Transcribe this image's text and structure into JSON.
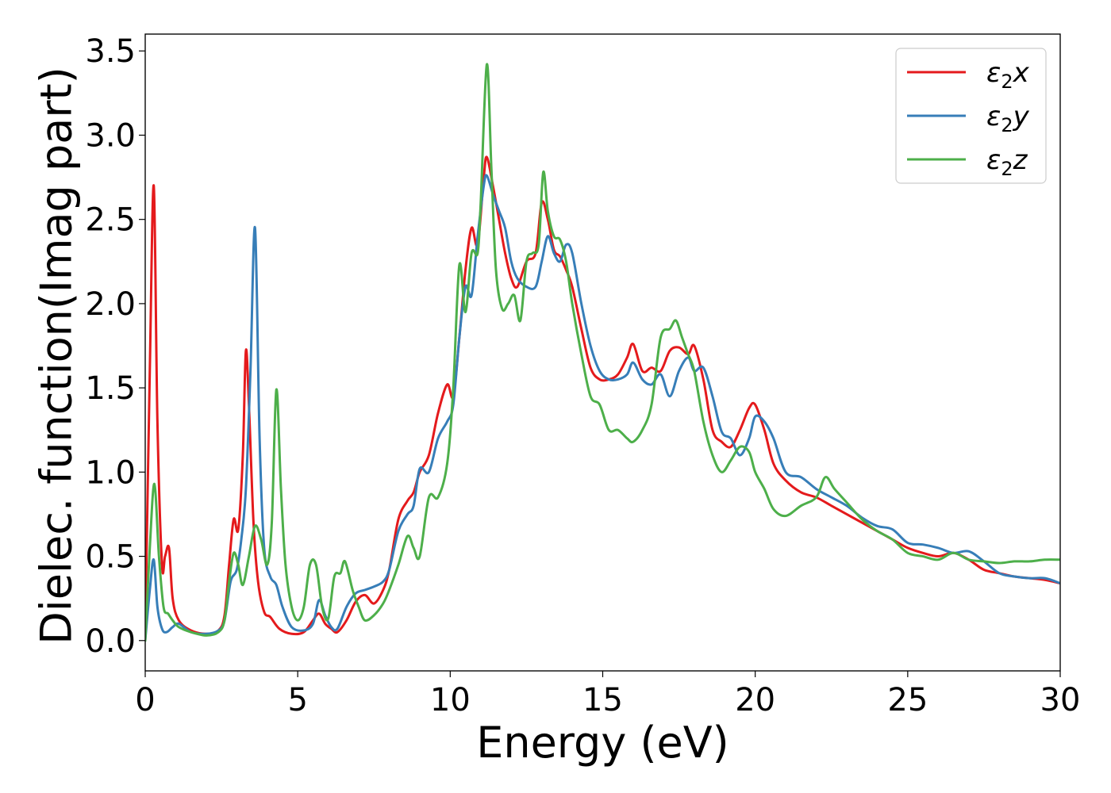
{
  "chart_data": {
    "type": "line",
    "xlabel": "Energy (eV)",
    "ylabel": "Dielec. function(Imag part)",
    "xlim": [
      0,
      30
    ],
    "ylim": [
      -0.18,
      3.6
    ],
    "xticks": [
      0,
      5,
      10,
      15,
      20,
      25,
      30
    ],
    "xtick_labels": [
      "0",
      "5",
      "10",
      "15",
      "20",
      "25",
      "30"
    ],
    "yticks": [
      0.0,
      0.5,
      1.0,
      1.5,
      2.0,
      2.5,
      3.0,
      3.5
    ],
    "ytick_labels": [
      "0.0",
      "0.5",
      "1.0",
      "1.5",
      "2.0",
      "2.5",
      "3.0",
      "3.5"
    ],
    "grid": false,
    "legend_position": "top-right",
    "series": [
      {
        "name": "ε₂x",
        "legend_base": "ε",
        "legend_sub": "2",
        "legend_tail": "x",
        "color": "#e41a1c",
        "x": [
          0,
          0.15,
          0.28,
          0.4,
          0.55,
          0.65,
          0.78,
          0.9,
          1.1,
          1.5,
          2.0,
          2.4,
          2.6,
          2.75,
          2.9,
          3.05,
          3.2,
          3.3,
          3.4,
          3.55,
          3.7,
          3.9,
          4.1,
          4.4,
          4.8,
          5.2,
          5.5,
          5.7,
          5.9,
          6.1,
          6.3,
          6.6,
          6.9,
          7.2,
          7.5,
          7.8,
          8.0,
          8.3,
          8.6,
          8.8,
          9.0,
          9.3,
          9.6,
          9.9,
          10.1,
          10.3,
          10.5,
          10.7,
          10.9,
          11.1,
          11.2,
          11.4,
          11.6,
          11.8,
          12.0,
          12.2,
          12.5,
          12.8,
          13.0,
          13.2,
          13.4,
          13.6,
          13.8,
          14.0,
          14.3,
          14.6,
          14.9,
          15.2,
          15.5,
          15.8,
          16.0,
          16.3,
          16.6,
          16.9,
          17.2,
          17.5,
          17.8,
          18.0,
          18.3,
          18.6,
          18.9,
          19.2,
          19.5,
          19.8,
          20.0,
          20.3,
          20.6,
          21.0,
          21.5,
          22.0,
          22.5,
          23.0,
          23.5,
          24.0,
          24.5,
          25.0,
          25.5,
          26.0,
          26.5,
          27.0,
          27.5,
          28.0,
          28.5,
          29.0,
          29.5,
          30.0
        ],
        "y": [
          0.05,
          1.6,
          2.7,
          1.3,
          0.45,
          0.5,
          0.55,
          0.25,
          0.12,
          0.06,
          0.04,
          0.06,
          0.15,
          0.45,
          0.72,
          0.66,
          1.1,
          1.72,
          1.4,
          0.7,
          0.35,
          0.17,
          0.14,
          0.07,
          0.04,
          0.05,
          0.12,
          0.16,
          0.1,
          0.07,
          0.05,
          0.12,
          0.23,
          0.27,
          0.22,
          0.3,
          0.42,
          0.72,
          0.83,
          0.88,
          1.0,
          1.1,
          1.35,
          1.52,
          1.45,
          1.8,
          2.2,
          2.45,
          2.35,
          2.75,
          2.87,
          2.7,
          2.5,
          2.3,
          2.15,
          2.1,
          2.25,
          2.3,
          2.6,
          2.5,
          2.32,
          2.28,
          2.2,
          2.1,
          1.85,
          1.62,
          1.55,
          1.55,
          1.58,
          1.68,
          1.76,
          1.6,
          1.62,
          1.6,
          1.72,
          1.74,
          1.7,
          1.75,
          1.55,
          1.25,
          1.18,
          1.15,
          1.25,
          1.38,
          1.4,
          1.25,
          1.05,
          0.95,
          0.88,
          0.85,
          0.8,
          0.75,
          0.7,
          0.65,
          0.6,
          0.55,
          0.52,
          0.5,
          0.52,
          0.48,
          0.42,
          0.4,
          0.38,
          0.37,
          0.36,
          0.34
        ]
      },
      {
        "name": "ε₂y",
        "legend_base": "ε",
        "legend_sub": "2",
        "legend_tail": "y",
        "color": "#377eb8",
        "x": [
          0,
          0.15,
          0.28,
          0.4,
          0.55,
          0.7,
          0.9,
          1.1,
          1.5,
          2.0,
          2.4,
          2.6,
          2.8,
          3.0,
          3.15,
          3.3,
          3.45,
          3.6,
          3.75,
          3.9,
          4.1,
          4.3,
          4.5,
          4.8,
          5.2,
          5.5,
          5.7,
          5.9,
          6.1,
          6.3,
          6.6,
          6.9,
          7.2,
          7.5,
          7.8,
          8.0,
          8.3,
          8.6,
          8.8,
          9.0,
          9.3,
          9.6,
          9.9,
          10.1,
          10.3,
          10.5,
          10.7,
          10.9,
          11.1,
          11.2,
          11.4,
          11.6,
          11.8,
          12.0,
          12.2,
          12.5,
          12.8,
          13.0,
          13.2,
          13.4,
          13.6,
          13.8,
          14.0,
          14.3,
          14.6,
          14.9,
          15.2,
          15.5,
          15.8,
          16.0,
          16.3,
          16.6,
          16.9,
          17.2,
          17.5,
          17.8,
          18.0,
          18.3,
          18.6,
          18.9,
          19.2,
          19.5,
          19.8,
          20.0,
          20.3,
          20.6,
          21.0,
          21.5,
          22.0,
          22.5,
          23.0,
          23.5,
          24.0,
          24.5,
          25.0,
          25.5,
          26.0,
          26.5,
          27.0,
          27.5,
          28.0,
          28.5,
          29.0,
          29.5,
          30.0
        ],
        "y": [
          0.0,
          0.3,
          0.48,
          0.2,
          0.07,
          0.05,
          0.08,
          0.1,
          0.05,
          0.04,
          0.06,
          0.12,
          0.35,
          0.42,
          0.6,
          0.9,
          1.6,
          2.45,
          1.2,
          0.55,
          0.38,
          0.33,
          0.2,
          0.08,
          0.06,
          0.1,
          0.24,
          0.15,
          0.08,
          0.07,
          0.2,
          0.28,
          0.3,
          0.32,
          0.35,
          0.42,
          0.65,
          0.75,
          0.8,
          1.02,
          1.0,
          1.2,
          1.3,
          1.4,
          1.8,
          2.1,
          2.05,
          2.4,
          2.7,
          2.76,
          2.65,
          2.55,
          2.45,
          2.25,
          2.15,
          2.1,
          2.1,
          2.25,
          2.4,
          2.3,
          2.25,
          2.35,
          2.3,
          2.0,
          1.75,
          1.6,
          1.55,
          1.55,
          1.58,
          1.65,
          1.55,
          1.52,
          1.58,
          1.45,
          1.6,
          1.68,
          1.6,
          1.62,
          1.45,
          1.24,
          1.2,
          1.1,
          1.2,
          1.33,
          1.3,
          1.2,
          1.0,
          0.97,
          0.9,
          0.85,
          0.8,
          0.73,
          0.68,
          0.66,
          0.58,
          0.57,
          0.55,
          0.52,
          0.53,
          0.47,
          0.4,
          0.38,
          0.37,
          0.37,
          0.34
        ]
      },
      {
        "name": "ε₂z",
        "legend_base": "ε",
        "legend_sub": "2",
        "legend_tail": "z",
        "color": "#4daf4a",
        "x": [
          0,
          0.15,
          0.3,
          0.45,
          0.6,
          0.75,
          0.9,
          1.1,
          1.5,
          2.0,
          2.4,
          2.6,
          2.75,
          2.9,
          3.05,
          3.2,
          3.4,
          3.6,
          3.8,
          4.0,
          4.15,
          4.3,
          4.45,
          4.6,
          4.8,
          5.0,
          5.2,
          5.4,
          5.6,
          5.8,
          6.0,
          6.2,
          6.4,
          6.55,
          6.8,
          7.0,
          7.2,
          7.5,
          7.8,
          8.0,
          8.3,
          8.6,
          8.8,
          9.0,
          9.3,
          9.6,
          9.9,
          10.1,
          10.3,
          10.5,
          10.7,
          10.9,
          11.0,
          11.2,
          11.35,
          11.5,
          11.7,
          11.9,
          12.1,
          12.3,
          12.5,
          12.7,
          12.9,
          13.05,
          13.2,
          13.4,
          13.6,
          13.8,
          14.0,
          14.3,
          14.6,
          14.9,
          15.2,
          15.5,
          15.8,
          16.0,
          16.3,
          16.6,
          16.9,
          17.2,
          17.4,
          17.6,
          17.8,
          18.0,
          18.3,
          18.6,
          18.9,
          19.2,
          19.5,
          19.8,
          20.0,
          20.3,
          20.6,
          21.0,
          21.5,
          22.0,
          22.3,
          22.6,
          23.0,
          23.5,
          24.0,
          24.5,
          25.0,
          25.5,
          26.0,
          26.5,
          27.0,
          27.5,
          28.0,
          28.5,
          29.0,
          29.5,
          30.0
        ],
        "y": [
          0.0,
          0.55,
          0.93,
          0.5,
          0.2,
          0.16,
          0.12,
          0.08,
          0.05,
          0.03,
          0.05,
          0.12,
          0.35,
          0.52,
          0.45,
          0.33,
          0.5,
          0.68,
          0.6,
          0.45,
          0.7,
          1.49,
          0.9,
          0.45,
          0.2,
          0.12,
          0.2,
          0.45,
          0.45,
          0.2,
          0.13,
          0.38,
          0.4,
          0.47,
          0.3,
          0.2,
          0.12,
          0.15,
          0.22,
          0.3,
          0.45,
          0.62,
          0.55,
          0.5,
          0.85,
          0.85,
          1.05,
          1.5,
          2.23,
          1.95,
          2.3,
          2.3,
          2.6,
          3.42,
          2.8,
          2.2,
          1.97,
          2.0,
          2.05,
          1.9,
          2.25,
          2.3,
          2.35,
          2.78,
          2.55,
          2.4,
          2.38,
          2.25,
          2.0,
          1.7,
          1.45,
          1.4,
          1.25,
          1.25,
          1.2,
          1.18,
          1.25,
          1.4,
          1.8,
          1.85,
          1.9,
          1.8,
          1.7,
          1.6,
          1.3,
          1.1,
          1.0,
          1.07,
          1.15,
          1.12,
          1.0,
          0.9,
          0.78,
          0.74,
          0.8,
          0.85,
          0.97,
          0.9,
          0.82,
          0.72,
          0.65,
          0.6,
          0.52,
          0.5,
          0.48,
          0.52,
          0.48,
          0.47,
          0.46,
          0.47,
          0.47,
          0.48,
          0.48
        ]
      }
    ]
  }
}
